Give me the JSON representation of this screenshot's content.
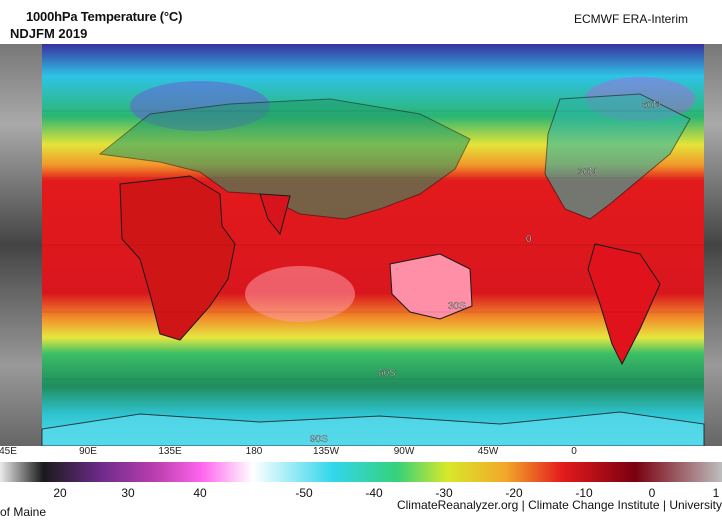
{
  "header": {
    "title": "1000hPa Temperature (°C)",
    "subtitle": "NDJFM 2019",
    "source": "ECMWF ERA-Interim"
  },
  "map": {
    "type": "equirectangular",
    "variable": "1000hPa Temperature",
    "lat_labels": [
      {
        "text": "60N"
      },
      {
        "text": "30N"
      },
      {
        "text": "0"
      },
      {
        "text": "30S"
      },
      {
        "text": "60S"
      },
      {
        "text": "90S"
      }
    ],
    "lon_ticks": [
      "45E",
      "90E",
      "135E",
      "180",
      "135W",
      "90W",
      "45W",
      "0"
    ],
    "land_color": "#dcdcdc",
    "coast_color": "#1a1a1a"
  },
  "colorbar": {
    "labels": [
      "20",
      "30",
      "40",
      "-50",
      "-40",
      "-30",
      "-20",
      "-10",
      "0",
      "1"
    ],
    "stops": [
      "#ececec",
      "#1a1a1a",
      "#6d2b8a",
      "#c03fb2",
      "#ff66ee",
      "#ffffff",
      "#33d6ec",
      "#35d17b",
      "#d8e82b",
      "#f2a82a",
      "#e31a1c",
      "#7a0010",
      "#bdbdbd"
    ]
  },
  "footer": {
    "credit": "ClimateReanalyzer.org | Climate Change Institute | University",
    "credit_cont": "of Maine"
  }
}
